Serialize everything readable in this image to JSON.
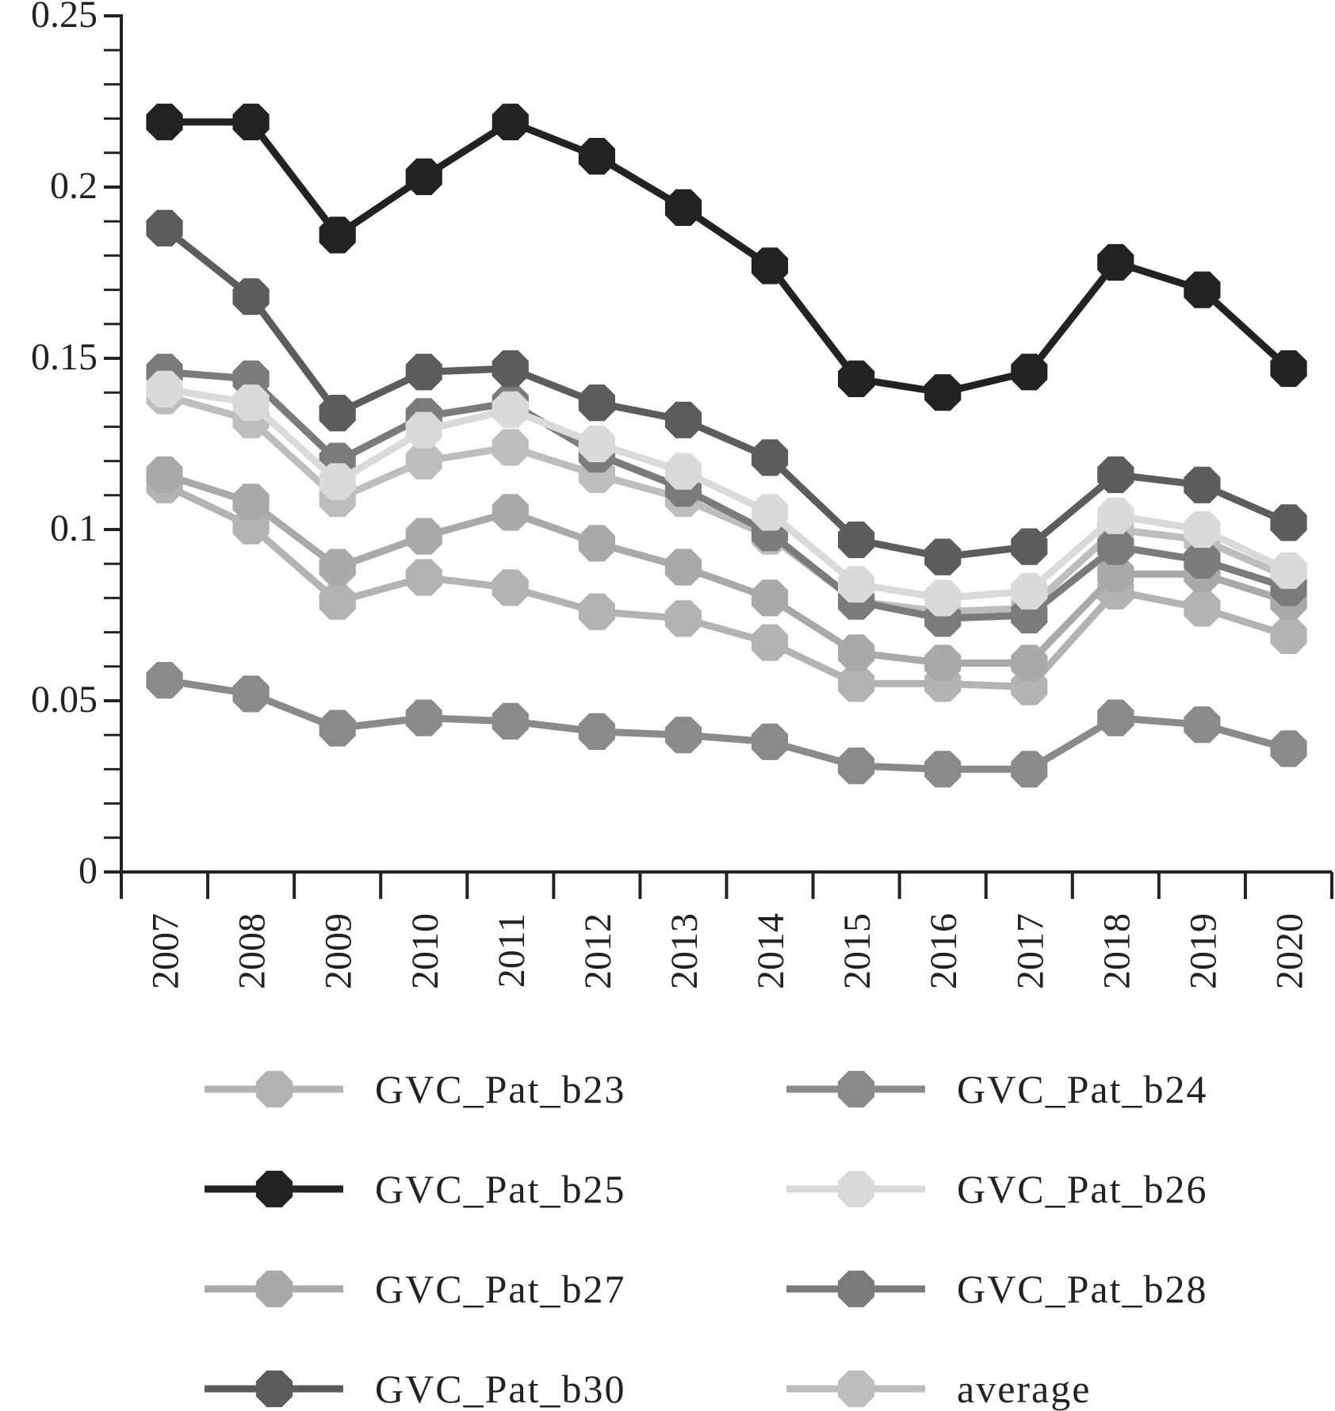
{
  "chart_data": {
    "type": "line",
    "title": "",
    "xlabel": "",
    "ylabel": "",
    "ylim": [
      0,
      0.25
    ],
    "y_ticks": [
      "0",
      "0.05",
      "0.1",
      "0.15",
      "0.2",
      "0.25"
    ],
    "y_tick_values": [
      0,
      0.05,
      0.1,
      0.15,
      0.2,
      0.25
    ],
    "y_minor_step": 0.01,
    "categories": [
      "2007",
      "2008",
      "2009",
      "2010",
      "2011",
      "2012",
      "2013",
      "2014",
      "2015",
      "2016",
      "2017",
      "2018",
      "2019",
      "2020"
    ],
    "grid": false,
    "legend_position": "bottom",
    "series": [
      {
        "name": "GVC_Pat_b23",
        "color": "#b3b3b3",
        "values": [
          0.113,
          0.101,
          0.079,
          0.086,
          0.083,
          0.076,
          0.074,
          0.067,
          0.055,
          0.055,
          0.054,
          0.082,
          0.077,
          0.069
        ]
      },
      {
        "name": "GVC_Pat_b24",
        "color": "#8a8a8a",
        "values": [
          0.056,
          0.052,
          0.042,
          0.045,
          0.044,
          0.041,
          0.04,
          0.038,
          0.031,
          0.03,
          0.03,
          0.045,
          0.043,
          0.036
        ]
      },
      {
        "name": "GVC_Pat_b25",
        "color": "#222222",
        "values": [
          0.219,
          0.219,
          0.186,
          0.203,
          0.219,
          0.209,
          0.194,
          0.177,
          0.144,
          0.14,
          0.146,
          0.178,
          0.17,
          0.147
        ]
      },
      {
        "name": "GVC_Pat_b26",
        "color": "#dadada",
        "values": [
          0.141,
          0.137,
          0.114,
          0.129,
          0.135,
          0.125,
          0.117,
          0.105,
          0.084,
          0.08,
          0.082,
          0.104,
          0.1,
          0.088
        ]
      },
      {
        "name": "GVC_Pat_b27",
        "color": "#a9a9a9",
        "values": [
          0.116,
          0.108,
          0.089,
          0.098,
          0.105,
          0.096,
          0.089,
          0.08,
          0.064,
          0.061,
          0.061,
          0.087,
          0.087,
          0.079
        ]
      },
      {
        "name": "GVC_Pat_b28",
        "color": "#7b7b7b",
        "values": [
          0.146,
          0.144,
          0.12,
          0.133,
          0.137,
          0.122,
          0.112,
          0.099,
          0.079,
          0.074,
          0.075,
          0.095,
          0.091,
          0.083
        ]
      },
      {
        "name": "GVC_Pat_b30",
        "color": "#5c5c5c",
        "values": [
          0.188,
          0.168,
          0.134,
          0.146,
          0.147,
          0.137,
          0.132,
          0.121,
          0.097,
          0.092,
          0.095,
          0.116,
          0.113,
          0.102
        ]
      },
      {
        "name": "average",
        "color": "#bdbdbd",
        "values": [
          0.139,
          0.132,
          0.109,
          0.12,
          0.124,
          0.116,
          0.109,
          0.098,
          0.079,
          0.076,
          0.077,
          0.1,
          0.097,
          0.086
        ]
      }
    ]
  }
}
